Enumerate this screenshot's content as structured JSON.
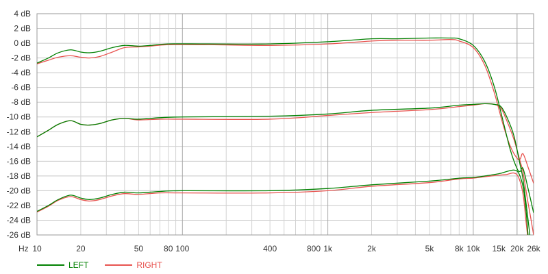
{
  "chart_data": {
    "type": "line",
    "xscale": "log",
    "xlim": [
      10,
      26000
    ],
    "ylim": [
      -26,
      4
    ],
    "grid": true,
    "legend_position": "bottom-left",
    "x_unit_label": "Hz",
    "xticks": [
      {
        "value": 10,
        "label": "10"
      },
      {
        "value": 20,
        "label": "20"
      },
      {
        "value": 50,
        "label": "50"
      },
      {
        "value": 80,
        "label": "80"
      },
      {
        "value": 100,
        "label": "100"
      },
      {
        "value": 400,
        "label": "400"
      },
      {
        "value": 800,
        "label": "800"
      },
      {
        "value": 1000,
        "label": "1k"
      },
      {
        "value": 2000,
        "label": "2k"
      },
      {
        "value": 5000,
        "label": "5k"
      },
      {
        "value": 8000,
        "label": "8k"
      },
      {
        "value": 10000,
        "label": "10k"
      },
      {
        "value": 15000,
        "label": "15k"
      },
      {
        "value": 20000,
        "label": "20k"
      },
      {
        "value": 26000,
        "label": "26k"
      }
    ],
    "yticks": [
      {
        "value": 4,
        "label": "4 dB"
      },
      {
        "value": 2,
        "label": "2 dB"
      },
      {
        "value": 0,
        "label": "0 dB"
      },
      {
        "value": -2,
        "label": "-2 dB"
      },
      {
        "value": -4,
        "label": "-4 dB"
      },
      {
        "value": -6,
        "label": "-6 dB"
      },
      {
        "value": -8,
        "label": "-8 dB"
      },
      {
        "value": -10,
        "label": "-10 dB"
      },
      {
        "value": -12,
        "label": "-12 dB"
      },
      {
        "value": -14,
        "label": "-14 dB"
      },
      {
        "value": -16,
        "label": "-16 dB"
      },
      {
        "value": -18,
        "label": "-18 dB"
      },
      {
        "value": -20,
        "label": "-20 dB"
      },
      {
        "value": -22,
        "label": "-22 dB"
      },
      {
        "value": -24,
        "label": "-24 dB"
      },
      {
        "value": -26,
        "label": "-26 dB"
      }
    ],
    "series": [
      {
        "name": "LEFT",
        "color": "#008000",
        "traces": [
          {
            "points": [
              [
                10,
                -2.7
              ],
              [
                12,
                -2.0
              ],
              [
                14,
                -1.3
              ],
              [
                17,
                -0.9
              ],
              [
                20,
                -1.2
              ],
              [
                23,
                -1.3
              ],
              [
                27,
                -1.1
              ],
              [
                33,
                -0.6
              ],
              [
                40,
                -0.3
              ],
              [
                50,
                -0.4
              ],
              [
                60,
                -0.3
              ],
              [
                80,
                -0.1
              ],
              [
                150,
                -0.1
              ],
              [
                400,
                -0.1
              ],
              [
                1000,
                0.2
              ],
              [
                2000,
                0.6
              ],
              [
                3000,
                0.6
              ],
              [
                5000,
                0.7
              ],
              [
                7000,
                0.7
              ],
              [
                8000,
                0.6
              ],
              [
                10000,
                -0.3
              ],
              [
                12000,
                -2.5
              ],
              [
                14000,
                -6.0
              ],
              [
                16000,
                -10.5
              ],
              [
                18000,
                -14.5
              ],
              [
                20000,
                -17.0
              ],
              [
                21000,
                -17.4
              ],
              [
                22000,
                -17.0
              ],
              [
                24000,
                -20.0
              ],
              [
                26000,
                -23.0
              ]
            ]
          },
          {
            "points": [
              [
                10,
                -12.7
              ],
              [
                12,
                -11.8
              ],
              [
                14,
                -11.0
              ],
              [
                17,
                -10.5
              ],
              [
                20,
                -11.0
              ],
              [
                23,
                -11.1
              ],
              [
                27,
                -10.9
              ],
              [
                33,
                -10.4
              ],
              [
                40,
                -10.2
              ],
              [
                50,
                -10.3
              ],
              [
                70,
                -10.1
              ],
              [
                100,
                -10.0
              ],
              [
                400,
                -9.9
              ],
              [
                1000,
                -9.6
              ],
              [
                2000,
                -9.1
              ],
              [
                5000,
                -8.8
              ],
              [
                8000,
                -8.4
              ],
              [
                10000,
                -8.3
              ],
              [
                12000,
                -8.2
              ],
              [
                14000,
                -8.3
              ],
              [
                15500,
                -8.6
              ],
              [
                17000,
                -10.0
              ],
              [
                19000,
                -12.5
              ],
              [
                21000,
                -16.5
              ],
              [
                22000,
                -18.5
              ],
              [
                23500,
                -23.0
              ],
              [
                24500,
                -26.0
              ]
            ]
          },
          {
            "points": [
              [
                10,
                -22.8
              ],
              [
                12,
                -22.0
              ],
              [
                14,
                -21.2
              ],
              [
                17,
                -20.6
              ],
              [
                20,
                -21.0
              ],
              [
                23,
                -21.2
              ],
              [
                27,
                -21.0
              ],
              [
                33,
                -20.5
              ],
              [
                40,
                -20.2
              ],
              [
                50,
                -20.3
              ],
              [
                70,
                -20.1
              ],
              [
                100,
                -20.0
              ],
              [
                400,
                -20.0
              ],
              [
                1000,
                -19.7
              ],
              [
                2000,
                -19.2
              ],
              [
                5000,
                -18.7
              ],
              [
                8000,
                -18.3
              ],
              [
                10000,
                -18.2
              ],
              [
                12000,
                -18.0
              ],
              [
                15000,
                -17.7
              ],
              [
                17000,
                -17.4
              ],
              [
                19000,
                -17.2
              ],
              [
                20500,
                -17.6
              ],
              [
                22000,
                -19.5
              ],
              [
                23000,
                -22.5
              ],
              [
                23800,
                -26.0
              ]
            ]
          }
        ]
      },
      {
        "name": "RIGHT",
        "color": "#e8534f",
        "traces": [
          {
            "points": [
              [
                10,
                -2.8
              ],
              [
                12,
                -2.3
              ],
              [
                14,
                -1.9
              ],
              [
                17,
                -1.7
              ],
              [
                20,
                -1.9
              ],
              [
                23,
                -2.0
              ],
              [
                27,
                -1.8
              ],
              [
                33,
                -1.2
              ],
              [
                40,
                -0.6
              ],
              [
                50,
                -0.5
              ],
              [
                60,
                -0.4
              ],
              [
                80,
                -0.2
              ],
              [
                150,
                -0.2
              ],
              [
                400,
                -0.3
              ],
              [
                1000,
                -0.1
              ],
              [
                2000,
                0.3
              ],
              [
                3000,
                0.4
              ],
              [
                5000,
                0.4
              ],
              [
                7000,
                0.5
              ],
              [
                8000,
                0.3
              ],
              [
                10000,
                -0.6
              ],
              [
                12000,
                -3.0
              ],
              [
                14000,
                -6.8
              ],
              [
                16000,
                -11.0
              ],
              [
                18000,
                -14.0
              ],
              [
                20000,
                -15.6
              ],
              [
                21000,
                -15.7
              ],
              [
                22000,
                -15.0
              ],
              [
                24000,
                -17.0
              ],
              [
                26000,
                -19.0
              ]
            ]
          },
          {
            "points": [
              [
                10,
                -12.7
              ],
              [
                12,
                -11.8
              ],
              [
                14,
                -11.0
              ],
              [
                17,
                -10.5
              ],
              [
                20,
                -11.0
              ],
              [
                23,
                -11.1
              ],
              [
                27,
                -10.9
              ],
              [
                33,
                -10.4
              ],
              [
                40,
                -10.2
              ],
              [
                50,
                -10.4
              ],
              [
                70,
                -10.3
              ],
              [
                100,
                -10.3
              ],
              [
                400,
                -10.3
              ],
              [
                1000,
                -9.8
              ],
              [
                2000,
                -9.4
              ],
              [
                5000,
                -9.0
              ],
              [
                8000,
                -8.6
              ],
              [
                10000,
                -8.4
              ],
              [
                12000,
                -8.2
              ],
              [
                14000,
                -8.3
              ],
              [
                15500,
                -8.8
              ],
              [
                17000,
                -10.5
              ],
              [
                19000,
                -13.0
              ],
              [
                21000,
                -16.0
              ],
              [
                22000,
                -17.5
              ],
              [
                23500,
                -21.0
              ],
              [
                25000,
                -24.0
              ],
              [
                26000,
                -26.0
              ]
            ]
          },
          {
            "points": [
              [
                10,
                -22.9
              ],
              [
                12,
                -22.1
              ],
              [
                14,
                -21.3
              ],
              [
                17,
                -20.8
              ],
              [
                20,
                -21.2
              ],
              [
                23,
                -21.4
              ],
              [
                27,
                -21.2
              ],
              [
                33,
                -20.7
              ],
              [
                40,
                -20.4
              ],
              [
                50,
                -20.5
              ],
              [
                70,
                -20.3
              ],
              [
                100,
                -20.3
              ],
              [
                400,
                -20.3
              ],
              [
                1000,
                -20.0
              ],
              [
                2000,
                -19.4
              ],
              [
                5000,
                -18.9
              ],
              [
                8000,
                -18.4
              ],
              [
                10000,
                -18.3
              ],
              [
                12000,
                -18.1
              ],
              [
                15000,
                -17.9
              ],
              [
                17000,
                -17.8
              ],
              [
                19000,
                -17.6
              ],
              [
                20500,
                -18.2
              ],
              [
                22000,
                -20.5
              ],
              [
                23000,
                -24.0
              ],
              [
                23600,
                -26.0
              ]
            ]
          }
        ]
      }
    ]
  }
}
